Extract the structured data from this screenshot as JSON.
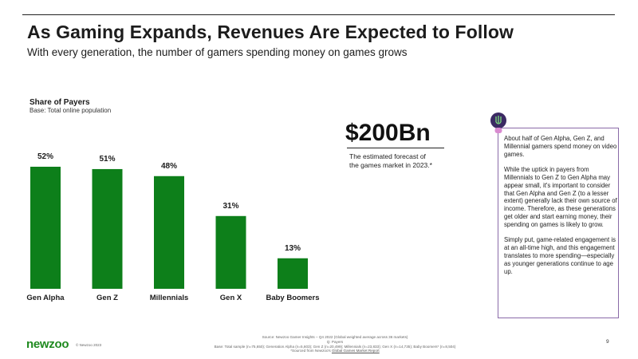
{
  "header": {
    "title": "As Gaming Expands, Revenues Are Expected to Follow",
    "subtitle": "With every generation, the number of gamers spending money on games grows"
  },
  "chart_data": {
    "type": "bar",
    "title": "Share of Payers",
    "subtitle": "Base: Total online population",
    "categories": [
      "Gen Alpha",
      "Gen Z",
      "Millennials",
      "Gen X",
      "Baby Boomers"
    ],
    "values": [
      52,
      51,
      48,
      31,
      13
    ],
    "value_labels": [
      "52%",
      "51%",
      "48%",
      "31%",
      "13%"
    ],
    "unit": "%",
    "ylim": [
      0,
      60
    ],
    "bar_color": "#0d7f1a",
    "grid": false,
    "legend": "none"
  },
  "highlight": {
    "value": "$200Bn",
    "caption": "The estimated forecast of the games market in 2023.*"
  },
  "callout": {
    "icon": "lightbulb-icon",
    "paragraphs": [
      "About half of Gen Alpha, Gen Z, and Millennial gamers spend money on video games.",
      "While the uptick in payers from Millennials to Gen Z to Gen Alpha may appear small, it's important to consider that Gen Alpha and Gen Z (to a lesser extent) generally lack their own source of income. Therefore, as these generations get older and start earning money, their spending on games is likely to grow.",
      "Simply put, game-related engagement is at an all-time high, and  this engagement translates to more spending—especially as younger generations continue to age up."
    ]
  },
  "footer": {
    "logo": "newzoo",
    "copyright": "© Newzoo 2023",
    "source": "Source: Newzoo Gamer Insights – Q4 2022 (Global weighted average across 36 markets)",
    "question": "Q: Payers",
    "base": "Base: Total sample (n=75,650); Generation Alpha (n=5,603); Gen Z (n=20,499); Millennials (n=23,833); Gen X (n=14,735); Baby Boomers* (n=8,504)",
    "sourced_prefix": "*Sourced from Newzoo's",
    "sourced_link": "Global Games Market Report",
    "page_number": "9"
  }
}
